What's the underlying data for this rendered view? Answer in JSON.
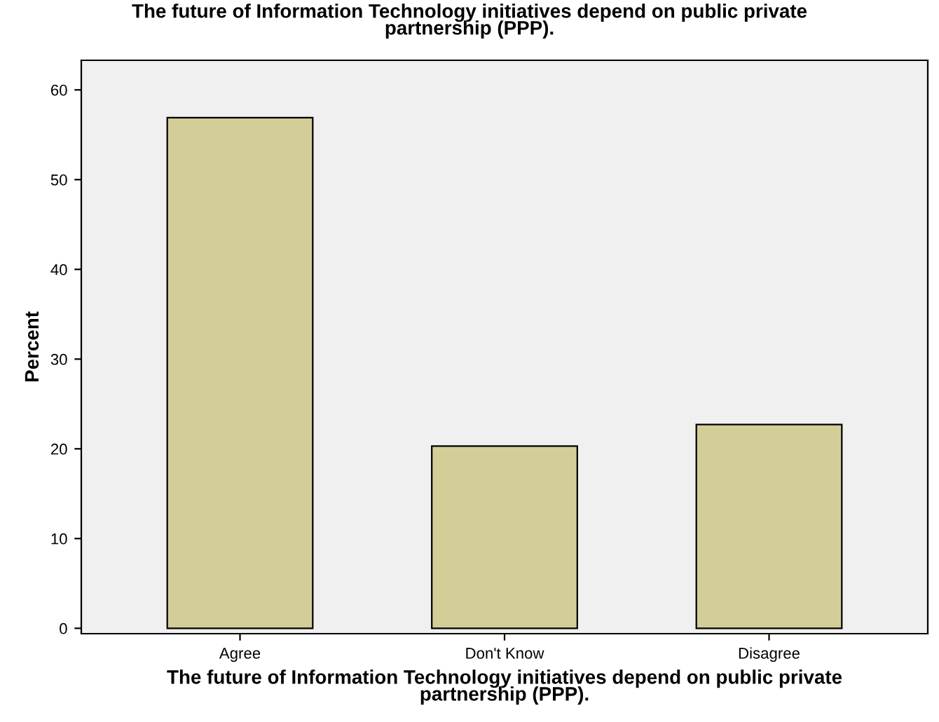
{
  "chart_data": {
    "type": "bar",
    "title": "The future of Information Technology initiatives depend on public private\npartnership (PPP).",
    "xlabel": "The future of Information Technology initiatives depend on public private\npartnership (PPP).",
    "ylabel": "Percent",
    "categories": [
      "Agree",
      "Don't Know",
      "Disagree"
    ],
    "values": [
      56.9,
      20.3,
      22.7
    ],
    "color": "#d3ce98",
    "ylim": [
      -0.6,
      63.3
    ],
    "yticks": [
      0,
      10,
      20,
      30,
      40,
      50,
      60
    ],
    "grid": false
  }
}
